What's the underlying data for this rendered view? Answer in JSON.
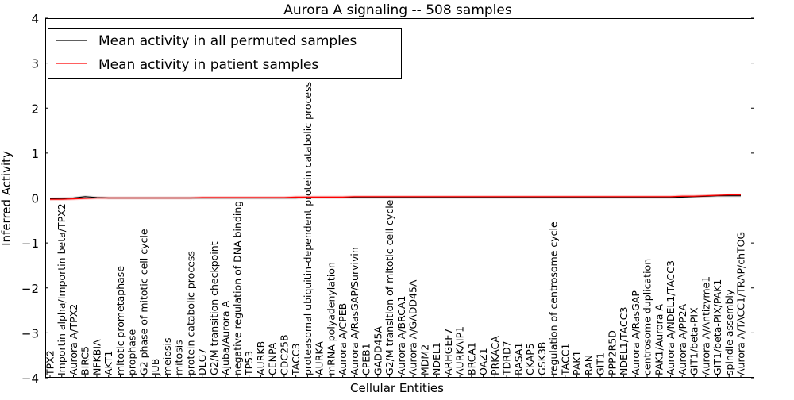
{
  "chart_data": {
    "type": "line",
    "title": "Aurora A signaling -- 508 samples",
    "xlabel": "Cellular Entities",
    "ylabel": "Inferred Activity",
    "ylim": [
      -4,
      4
    ],
    "yticks": [
      -4,
      -3,
      -2,
      -1,
      0,
      1,
      2,
      3,
      4
    ],
    "ytick_labels": [
      "−4",
      "−3",
      "−2",
      "−1",
      "0",
      "1",
      "2",
      "3",
      "4"
    ],
    "legend_position": "top-left",
    "categories": [
      "TPX2",
      "Importin alpha/Importin beta/TPX2",
      "Aurora A/TPX2",
      "BIRC5",
      "NFKBIA",
      "AKT1",
      "mitotic prometaphase",
      "prophase",
      "G2 phase of mitotic cell cycle",
      "JUB",
      "meiosis",
      "mitosis",
      "protein catabolic process",
      "DLG7",
      "G2/M transition checkpoint",
      "Ajuba/Aurora A",
      "negative regulation of DNA binding",
      "TP53",
      "AURKB",
      "CENPA",
      "CDC25B",
      "TACC3",
      "proteasomal ubiquitin-dependent protein catabolic process",
      "AURKA",
      "mRNA polyadenylation",
      "Aurora A/CPEB",
      "Aurora A/RasGAP/Survivin",
      "CPEB1",
      "GADD45A",
      "G2/M transition of mitotic cell cycle",
      "Aurora A/BRCA1",
      "Aurora A/GADD45A",
      "MDM2",
      "NDEL1",
      "ARHGEF7",
      "AURKAIP1",
      "BRCA1",
      "OAZ1",
      "PRKACA",
      "TDRD7",
      "RASA1",
      "CKAP5",
      "GSK3B",
      "regulation of centrosome cycle",
      "TACC1",
      "PAK1",
      "RAN",
      "GIT1",
      "PPP2R5D",
      "NDEL1/TACC3",
      "Aurora A/RasGAP",
      "centrosome duplication",
      "PAK1/Aurora A",
      "Aurora A/NDEL1/TACC3",
      "Aurora A/PP2A",
      "GIT1/beta-PIX",
      "Aurora A/Antizyme1",
      "GIT1/beta-PIX/PAK1",
      "spindle assembly",
      "Aurora A/TACC1/TRAP/chTOG"
    ],
    "series": [
      {
        "name": "Mean activity in all permuted samples",
        "color": "#000000",
        "band_color": "#bbbbbb",
        "values": [
          -0.02,
          -0.01,
          0.0,
          0.03,
          0.01,
          0.0,
          0.0,
          0.0,
          0.0,
          0.0,
          0.0,
          0.0,
          0.0,
          0.0,
          0.0,
          0.0,
          0.0,
          0.0,
          0.0,
          0.0,
          0.0,
          0.0,
          0.01,
          0.01,
          0.01,
          0.01,
          0.01,
          0.01,
          0.01,
          0.01,
          0.01,
          0.01,
          0.01,
          0.01,
          0.01,
          0.01,
          0.01,
          0.01,
          0.01,
          0.01,
          0.01,
          0.01,
          0.01,
          0.01,
          0.01,
          0.01,
          0.01,
          0.01,
          0.01,
          0.01,
          0.01,
          0.01,
          0.01,
          0.01,
          0.02,
          0.03,
          0.04,
          0.05,
          0.05,
          0.05
        ],
        "band": 0.03
      },
      {
        "name": "Mean activity in patient samples",
        "color": "#ff0000",
        "band_color": "#ff9999",
        "values": [
          -0.03,
          -0.03,
          -0.02,
          -0.01,
          0.0,
          0.0,
          0.0,
          0.0,
          0.0,
          0.0,
          0.0,
          0.0,
          0.0,
          0.01,
          0.01,
          0.01,
          0.01,
          0.01,
          0.01,
          0.01,
          0.01,
          0.02,
          0.02,
          0.02,
          0.02,
          0.02,
          0.03,
          0.03,
          0.03,
          0.03,
          0.03,
          0.03,
          0.03,
          0.03,
          0.03,
          0.03,
          0.03,
          0.03,
          0.03,
          0.03,
          0.03,
          0.03,
          0.03,
          0.03,
          0.03,
          0.03,
          0.03,
          0.03,
          0.03,
          0.03,
          0.03,
          0.03,
          0.03,
          0.03,
          0.04,
          0.04,
          0.05,
          0.06,
          0.07,
          0.07
        ],
        "band": 0.03
      }
    ]
  }
}
